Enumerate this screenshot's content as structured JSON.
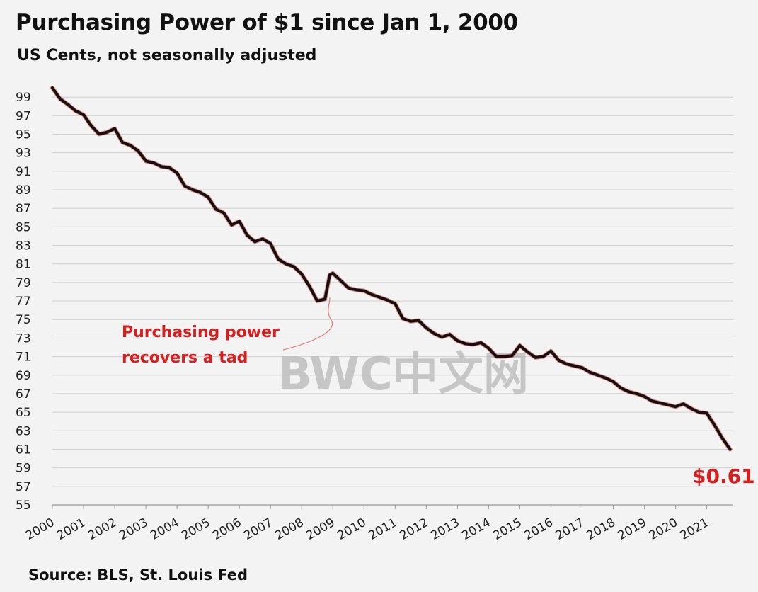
{
  "title": "Purchasing  Power of $1 since Jan 1, 2000",
  "subtitle": "US Cents, not seasonally adjusted",
  "source": "Source: BLS, St. Louis Fed",
  "watermark": "BWC中文网",
  "colors": {
    "line": "#111111",
    "accent": "#d42020",
    "grid": "#cfcfcf",
    "background": "#f3f3f3",
    "watermark": "#b8b8b8"
  },
  "chart_data": {
    "type": "line",
    "ylim": [
      55,
      100
    ],
    "yticks": [
      55,
      57,
      59,
      61,
      63,
      65,
      67,
      69,
      71,
      73,
      75,
      77,
      79,
      81,
      83,
      85,
      87,
      89,
      91,
      93,
      95,
      97,
      99
    ],
    "xticks": [
      "2000",
      "2001",
      "2002",
      "2003",
      "2004",
      "2005",
      "2006",
      "2007",
      "2008",
      "2009",
      "2010",
      "2011",
      "2012",
      "2013",
      "2014",
      "2015",
      "2016",
      "2017",
      "2018",
      "2019",
      "2020",
      "2021"
    ],
    "grid": true,
    "legend": "none",
    "series": [
      {
        "x": [
          2000.0,
          2000.25,
          2000.5,
          2000.75,
          2001.0,
          2001.25,
          2001.5,
          2001.75,
          2002.0,
          2002.25,
          2002.5,
          2002.75,
          2003.0,
          2003.25,
          2003.5,
          2003.75,
          2004.0,
          2004.25,
          2004.5,
          2004.75,
          2005.0,
          2005.25,
          2005.5,
          2005.75,
          2006.0,
          2006.25,
          2006.5,
          2006.75,
          2007.0,
          2007.25,
          2007.5,
          2007.75,
          2008.0,
          2008.25,
          2008.5,
          2008.75,
          2008.9,
          2009.0,
          2009.25,
          2009.5,
          2009.75,
          2010.0,
          2010.25,
          2010.5,
          2010.75,
          2011.0,
          2011.25,
          2011.5,
          2011.75,
          2012.0,
          2012.25,
          2012.5,
          2012.75,
          2013.0,
          2013.25,
          2013.5,
          2013.75,
          2014.0,
          2014.25,
          2014.5,
          2014.75,
          2015.0,
          2015.25,
          2015.5,
          2015.75,
          2016.0,
          2016.25,
          2016.5,
          2016.75,
          2017.0,
          2017.25,
          2017.5,
          2017.75,
          2018.0,
          2018.25,
          2018.5,
          2018.75,
          2019.0,
          2019.25,
          2019.5,
          2019.75,
          2020.0,
          2020.25,
          2020.5,
          2020.75,
          2021.0,
          2021.25,
          2021.5,
          2021.75
        ],
        "y": [
          100.0,
          98.8,
          98.2,
          97.5,
          97.1,
          95.9,
          95.0,
          95.2,
          95.6,
          94.1,
          93.8,
          93.2,
          92.1,
          91.9,
          91.5,
          91.4,
          90.8,
          89.4,
          89.0,
          88.7,
          88.2,
          86.9,
          86.5,
          85.2,
          85.6,
          84.1,
          83.4,
          83.7,
          83.2,
          81.5,
          81.0,
          80.7,
          79.9,
          78.6,
          77.0,
          77.2,
          79.8,
          80.0,
          79.2,
          78.4,
          78.2,
          78.1,
          77.7,
          77.4,
          77.1,
          76.7,
          75.1,
          74.8,
          74.9,
          74.1,
          73.5,
          73.1,
          73.4,
          72.7,
          72.4,
          72.3,
          72.5,
          71.9,
          71.0,
          71.0,
          71.1,
          72.2,
          71.5,
          70.9,
          71.0,
          71.6,
          70.6,
          70.2,
          70.0,
          69.8,
          69.3,
          69.0,
          68.7,
          68.3,
          67.6,
          67.2,
          67.0,
          66.7,
          66.2,
          66.0,
          65.8,
          65.6,
          65.9,
          65.4,
          65.0,
          64.9,
          63.6,
          62.2,
          61.0
        ]
      }
    ],
    "annotations": [
      {
        "text_lines": [
          "Purchasing power",
          "recovers a tad"
        ]
      },
      {
        "text": "$0.61"
      }
    ]
  }
}
